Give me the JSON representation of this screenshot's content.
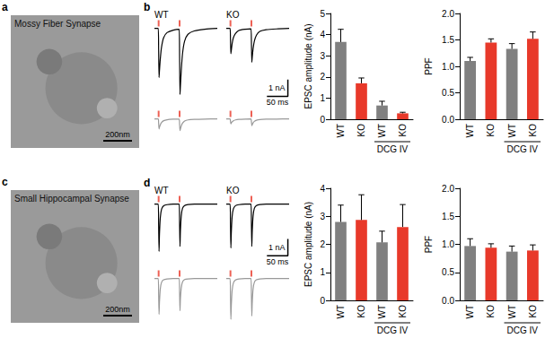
{
  "chart_data": [
    {
      "type": "image",
      "panel": "a",
      "title": "Mossy Fiber Synapse",
      "scale_bar": "200nm"
    },
    {
      "type": "line",
      "panel": "b",
      "title": "WT",
      "x": [
        0,
        9,
        10,
        11,
        12,
        14,
        17,
        22,
        30,
        45,
        59,
        60,
        61,
        62,
        64,
        67,
        72,
        80,
        95,
        120,
        150
      ],
      "series": [
        {
          "color": "#000000",
          "values": [
            0,
            0,
            -1.2,
            -2.9,
            -2.5,
            -1.8,
            -1.1,
            -0.55,
            -0.25,
            -0.1,
            -0.05,
            -1.6,
            -3.9,
            -3.4,
            -2.5,
            -1.5,
            -0.75,
            -0.35,
            -0.15,
            -0.05,
            0
          ]
        }
      ],
      "xlim": [
        0,
        150
      ],
      "ylim": [
        -4.2,
        0.3
      ],
      "tick_labels": false,
      "stimuli": [
        10,
        60
      ]
    },
    {
      "type": "line",
      "title": "KO",
      "x": [
        0,
        9,
        10,
        11,
        12,
        14,
        17,
        22,
        30,
        45,
        59,
        60,
        61,
        62,
        64,
        67,
        72,
        80,
        95,
        120,
        150
      ],
      "series": [
        {
          "color": "#000000",
          "values": [
            0,
            0,
            -0.6,
            -1.5,
            -1.3,
            -0.9,
            -0.55,
            -0.3,
            -0.12,
            -0.05,
            -0.02,
            -0.8,
            -2.0,
            -1.7,
            -1.2,
            -0.75,
            -0.4,
            -0.18,
            -0.08,
            -0.03,
            0
          ]
        }
      ],
      "xlim": [
        0,
        150
      ],
      "ylim": [
        -4.2,
        0.3
      ],
      "tick_labels": false,
      "stimuli": [
        10,
        60
      ],
      "scale_bar": {
        "x": 50,
        "x_label": "50 ms",
        "y": 1,
        "y_label": "1 nA"
      }
    },
    {
      "type": "line",
      "x": [
        0,
        9,
        10,
        11,
        12,
        14,
        17,
        22,
        30,
        45,
        59,
        60,
        61,
        62,
        64,
        67,
        72,
        80,
        95,
        120,
        150
      ],
      "series": [
        {
          "color": "#999999",
          "values": [
            0,
            0,
            -0.25,
            -0.6,
            -0.5,
            -0.35,
            -0.22,
            -0.11,
            -0.05,
            -0.02,
            -0.01,
            -0.3,
            -0.7,
            -0.6,
            -0.42,
            -0.26,
            -0.13,
            -0.06,
            -0.03,
            -0.01,
            0
          ]
        }
      ],
      "xlim": [
        0,
        150
      ],
      "ylim": [
        -1.2,
        0.3
      ],
      "tick_labels": false,
      "stimuli": [
        10,
        60
      ]
    },
    {
      "type": "line",
      "x": [
        0,
        9,
        10,
        11,
        12,
        14,
        17,
        22,
        30,
        45,
        59,
        60,
        61,
        62,
        64,
        67,
        72,
        80,
        95,
        120,
        150
      ],
      "series": [
        {
          "color": "#999999",
          "values": [
            0,
            0,
            -0.12,
            -0.3,
            -0.25,
            -0.18,
            -0.11,
            -0.06,
            -0.03,
            -0.01,
            0,
            -0.15,
            -0.4,
            -0.34,
            -0.24,
            -0.15,
            -0.08,
            -0.04,
            -0.02,
            -0.01,
            0
          ]
        }
      ],
      "xlim": [
        0,
        150
      ],
      "ylim": [
        -1.2,
        0.3
      ],
      "tick_labels": false,
      "stimuli": [
        10,
        60
      ]
    },
    {
      "type": "bar",
      "y_label": "EPSC amplitude (nA)",
      "categories": [
        "WT",
        "KO",
        "WT",
        "KO"
      ],
      "groups": [
        null,
        null,
        "DCG IV",
        "DCG IV"
      ],
      "values": [
        3.65,
        1.7,
        0.65,
        0.28
      ],
      "errors": [
        0.6,
        0.25,
        0.2,
        0.05
      ],
      "colors": [
        "#808080",
        "#e8392a",
        "#808080",
        "#e8392a"
      ],
      "ylim": [
        0,
        5
      ],
      "yticks": [
        0,
        1,
        2,
        3,
        4,
        5
      ],
      "grid": false
    },
    {
      "type": "bar",
      "y_label": "PPF",
      "categories": [
        "WT",
        "KO",
        "WT",
        "KO"
      ],
      "groups": [
        null,
        null,
        "DCG IV",
        "DCG IV"
      ],
      "values": [
        1.1,
        1.45,
        1.33,
        1.52
      ],
      "errors": [
        0.07,
        0.07,
        0.1,
        0.13
      ],
      "colors": [
        "#808080",
        "#e8392a",
        "#808080",
        "#e8392a"
      ],
      "ylim": [
        0,
        2
      ],
      "yticks": [
        {
          "value": 0,
          "label": "0.0"
        },
        {
          "value": 0.5,
          "label": "0.5"
        },
        {
          "value": 1,
          "label": "1.0"
        },
        {
          "value": 1.5,
          "label": "1.5"
        },
        {
          "value": 2,
          "label": "2.0"
        }
      ],
      "grid": false
    },
    {
      "type": "image",
      "panel": "c",
      "title": "Small Hippocampal Synapse",
      "scale_bar": "200nm"
    },
    {
      "type": "line",
      "panel": "d",
      "title": "WT",
      "x": [
        0,
        9,
        10,
        11,
        12,
        14,
        17,
        22,
        30,
        45,
        59,
        60,
        61,
        62,
        64,
        67,
        72,
        80,
        95,
        120,
        150
      ],
      "series": [
        {
          "color": "#000000",
          "values": [
            0,
            0,
            -1.2,
            -2.8,
            -1.8,
            -0.8,
            -0.3,
            -0.1,
            -0.03,
            0,
            0,
            -1.1,
            -2.5,
            -1.6,
            -0.7,
            -0.25,
            -0.08,
            -0.02,
            0,
            0,
            0
          ]
        }
      ],
      "xlim": [
        0,
        150
      ],
      "ylim": [
        -3.2,
        0.3
      ],
      "tick_labels": false,
      "stimuli": [
        10,
        60
      ]
    },
    {
      "type": "line",
      "title": "KO",
      "x": [
        0,
        9,
        10,
        11,
        12,
        14,
        17,
        22,
        30,
        45,
        59,
        60,
        61,
        62,
        64,
        67,
        72,
        80,
        95,
        120,
        150
      ],
      "series": [
        {
          "color": "#000000",
          "values": [
            0,
            0,
            -1.1,
            -2.6,
            -1.7,
            -0.75,
            -0.28,
            -0.09,
            -0.03,
            0,
            0,
            -1.1,
            -2.5,
            -1.6,
            -0.7,
            -0.25,
            -0.08,
            -0.02,
            0,
            0,
            0
          ]
        }
      ],
      "xlim": [
        0,
        150
      ],
      "ylim": [
        -3.2,
        0.3
      ],
      "tick_labels": false,
      "stimuli": [
        10,
        60
      ],
      "scale_bar": {
        "x": 50,
        "x_label": "50 ms",
        "y": 1,
        "y_label": "1 nA"
      }
    },
    {
      "type": "line",
      "x": [
        0,
        9,
        10,
        11,
        12,
        14,
        17,
        22,
        30,
        45,
        59,
        60,
        61,
        62,
        64,
        67,
        72,
        80,
        95,
        120,
        150
      ],
      "series": [
        {
          "color": "#999999",
          "values": [
            0,
            0,
            -0.9,
            -2.1,
            -1.4,
            -0.6,
            -0.22,
            -0.07,
            -0.02,
            0,
            0,
            -0.8,
            -1.9,
            -1.2,
            -0.55,
            -0.2,
            -0.06,
            -0.02,
            0,
            0,
            0
          ]
        }
      ],
      "xlim": [
        0,
        150
      ],
      "ylim": [
        -2.6,
        0.3
      ],
      "tick_labels": false,
      "stimuli": [
        10,
        60
      ]
    },
    {
      "type": "line",
      "x": [
        0,
        9,
        10,
        11,
        12,
        14,
        17,
        22,
        30,
        45,
        59,
        60,
        61,
        62,
        64,
        67,
        72,
        80,
        95,
        120,
        150
      ],
      "series": [
        {
          "color": "#999999",
          "values": [
            0,
            0,
            -1.0,
            -2.4,
            -1.6,
            -0.7,
            -0.26,
            -0.08,
            -0.02,
            0,
            0,
            -0.9,
            -2.2,
            -1.4,
            -0.62,
            -0.22,
            -0.07,
            -0.02,
            0,
            0,
            0
          ]
        }
      ],
      "xlim": [
        0,
        150
      ],
      "ylim": [
        -2.6,
        0.3
      ],
      "tick_labels": false,
      "stimuli": [
        10,
        60
      ]
    },
    {
      "type": "bar",
      "y_label": "EPSC amplitude (nA)",
      "categories": [
        "WT",
        "KO",
        "WT",
        "KO"
      ],
      "groups": [
        null,
        null,
        "DCG IV",
        "DCG IV"
      ],
      "values": [
        2.8,
        2.87,
        2.07,
        2.62
      ],
      "errors": [
        0.6,
        0.9,
        0.4,
        0.8
      ],
      "colors": [
        "#808080",
        "#e8392a",
        "#808080",
        "#e8392a"
      ],
      "ylim": [
        0,
        4
      ],
      "yticks": [
        0,
        1,
        2,
        3,
        4
      ],
      "grid": false
    },
    {
      "type": "bar",
      "y_label": "PPF",
      "categories": [
        "WT",
        "KO",
        "WT",
        "KO"
      ],
      "groups": [
        null,
        null,
        "DCG IV",
        "DCG IV"
      ],
      "values": [
        0.97,
        0.94,
        0.87,
        0.89
      ],
      "errors": [
        0.13,
        0.07,
        0.1,
        0.1
      ],
      "colors": [
        "#808080",
        "#e8392a",
        "#808080",
        "#e8392a"
      ],
      "ylim": [
        0,
        2
      ],
      "yticks": [
        {
          "value": 0,
          "label": "0.0"
        },
        {
          "value": 0.5,
          "label": "0.5"
        },
        {
          "value": 1,
          "label": "1.0"
        },
        {
          "value": 1.5,
          "label": "1.5"
        },
        {
          "value": 2,
          "label": "2.0"
        }
      ],
      "grid": false
    }
  ]
}
